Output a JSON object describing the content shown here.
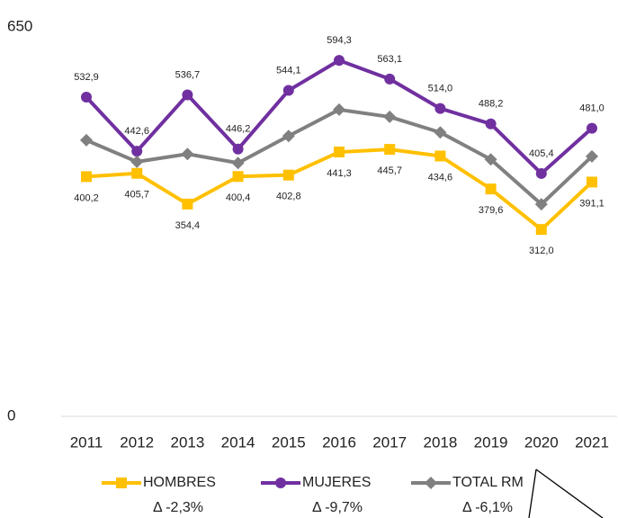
{
  "chart_data": {
    "type": "line",
    "categories": [
      "2011",
      "2012",
      "2013",
      "2014",
      "2015",
      "2016",
      "2017",
      "2018",
      "2019",
      "2020",
      "2021"
    ],
    "series": [
      {
        "name": "HOMBRES",
        "color": "#FFC000",
        "marker": "square",
        "label_side": "below",
        "delta": "Δ -2,3%",
        "values": [
          400.2,
          405.7,
          354.4,
          400.4,
          402.8,
          441.3,
          445.7,
          434.6,
          379.6,
          312.0,
          391.1
        ],
        "value_labels": [
          "400,2",
          "405,7",
          "354,4",
          "400,4",
          "402,8",
          "441,3",
          "445,7",
          "434,6",
          "379,6",
          "312,0",
          "391,1"
        ]
      },
      {
        "name": "MUJERES",
        "color": "#7030A0",
        "marker": "circle",
        "label_side": "above",
        "delta": "Δ -9,7%",
        "values": [
          532.9,
          442.6,
          536.7,
          446.2,
          544.1,
          594.3,
          563.1,
          514.0,
          488.2,
          405.4,
          481.0
        ],
        "value_labels": [
          "532,9",
          "442,6",
          "536,7",
          "446,2",
          "544,1",
          "594,3",
          "563,1",
          "514,0",
          "488,2",
          "405,4",
          "481,0"
        ]
      },
      {
        "name": "TOTAL RM",
        "color": "#808080",
        "marker": "diamond",
        "delta": "Δ -6,1%",
        "values": [
          461,
          425,
          438,
          423,
          468,
          512,
          500,
          474,
          429,
          354,
          434
        ]
      }
    ],
    "ylim": [
      0,
      650
    ],
    "yticks": [
      0,
      650
    ],
    "grid": false,
    "legend": "bottom"
  }
}
